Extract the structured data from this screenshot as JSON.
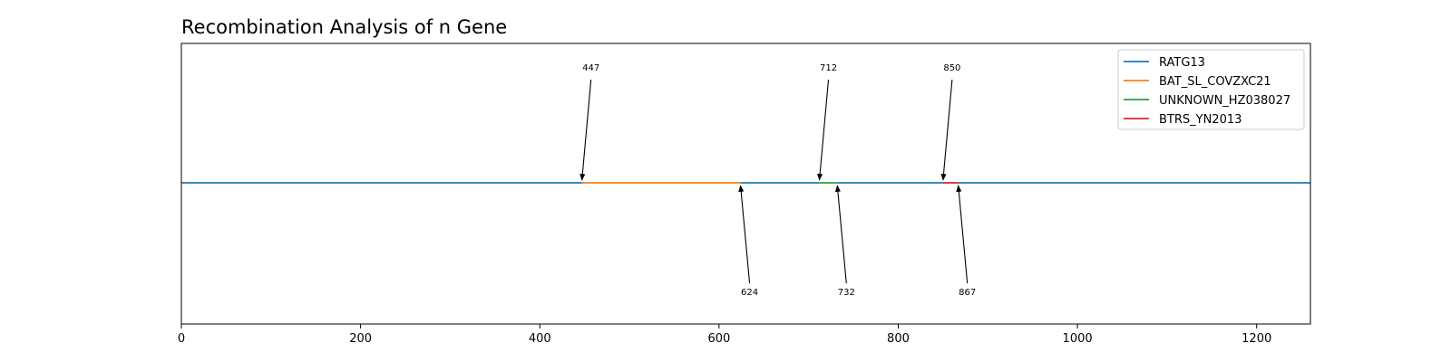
{
  "chart_data": {
    "type": "line",
    "title": "Recombination Analysis of n Gene",
    "xlabel": "",
    "ylabel": "",
    "xlim": [
      0,
      1260
    ],
    "x_ticks": [
      0,
      200,
      400,
      600,
      800,
      1000,
      1200
    ],
    "grid": false,
    "legend_position": "top-right",
    "series": [
      {
        "name": "RATG13",
        "color": "#1f77b4",
        "segments": [
          [
            0,
            447
          ],
          [
            624,
            712
          ],
          [
            732,
            850
          ],
          [
            867,
            1260
          ]
        ]
      },
      {
        "name": "BAT_SL_COVZXC21",
        "color": "#ff7f0e",
        "segments": [
          [
            447,
            624
          ]
        ]
      },
      {
        "name": "UNKNOWN_HZ038027",
        "color": "#2ca02c",
        "segments": [
          [
            712,
            732
          ]
        ]
      },
      {
        "name": "BTRS_YN2013",
        "color": "#d62728",
        "segments": [
          [
            850,
            867
          ]
        ]
      }
    ],
    "annotations": [
      {
        "text": "447",
        "x": 447,
        "side": "above"
      },
      {
        "text": "624",
        "x": 624,
        "side": "below"
      },
      {
        "text": "712",
        "x": 712,
        "side": "above"
      },
      {
        "text": "732",
        "x": 732,
        "side": "below"
      },
      {
        "text": "850",
        "x": 850,
        "side": "above"
      },
      {
        "text": "867",
        "x": 867,
        "side": "below"
      }
    ]
  }
}
